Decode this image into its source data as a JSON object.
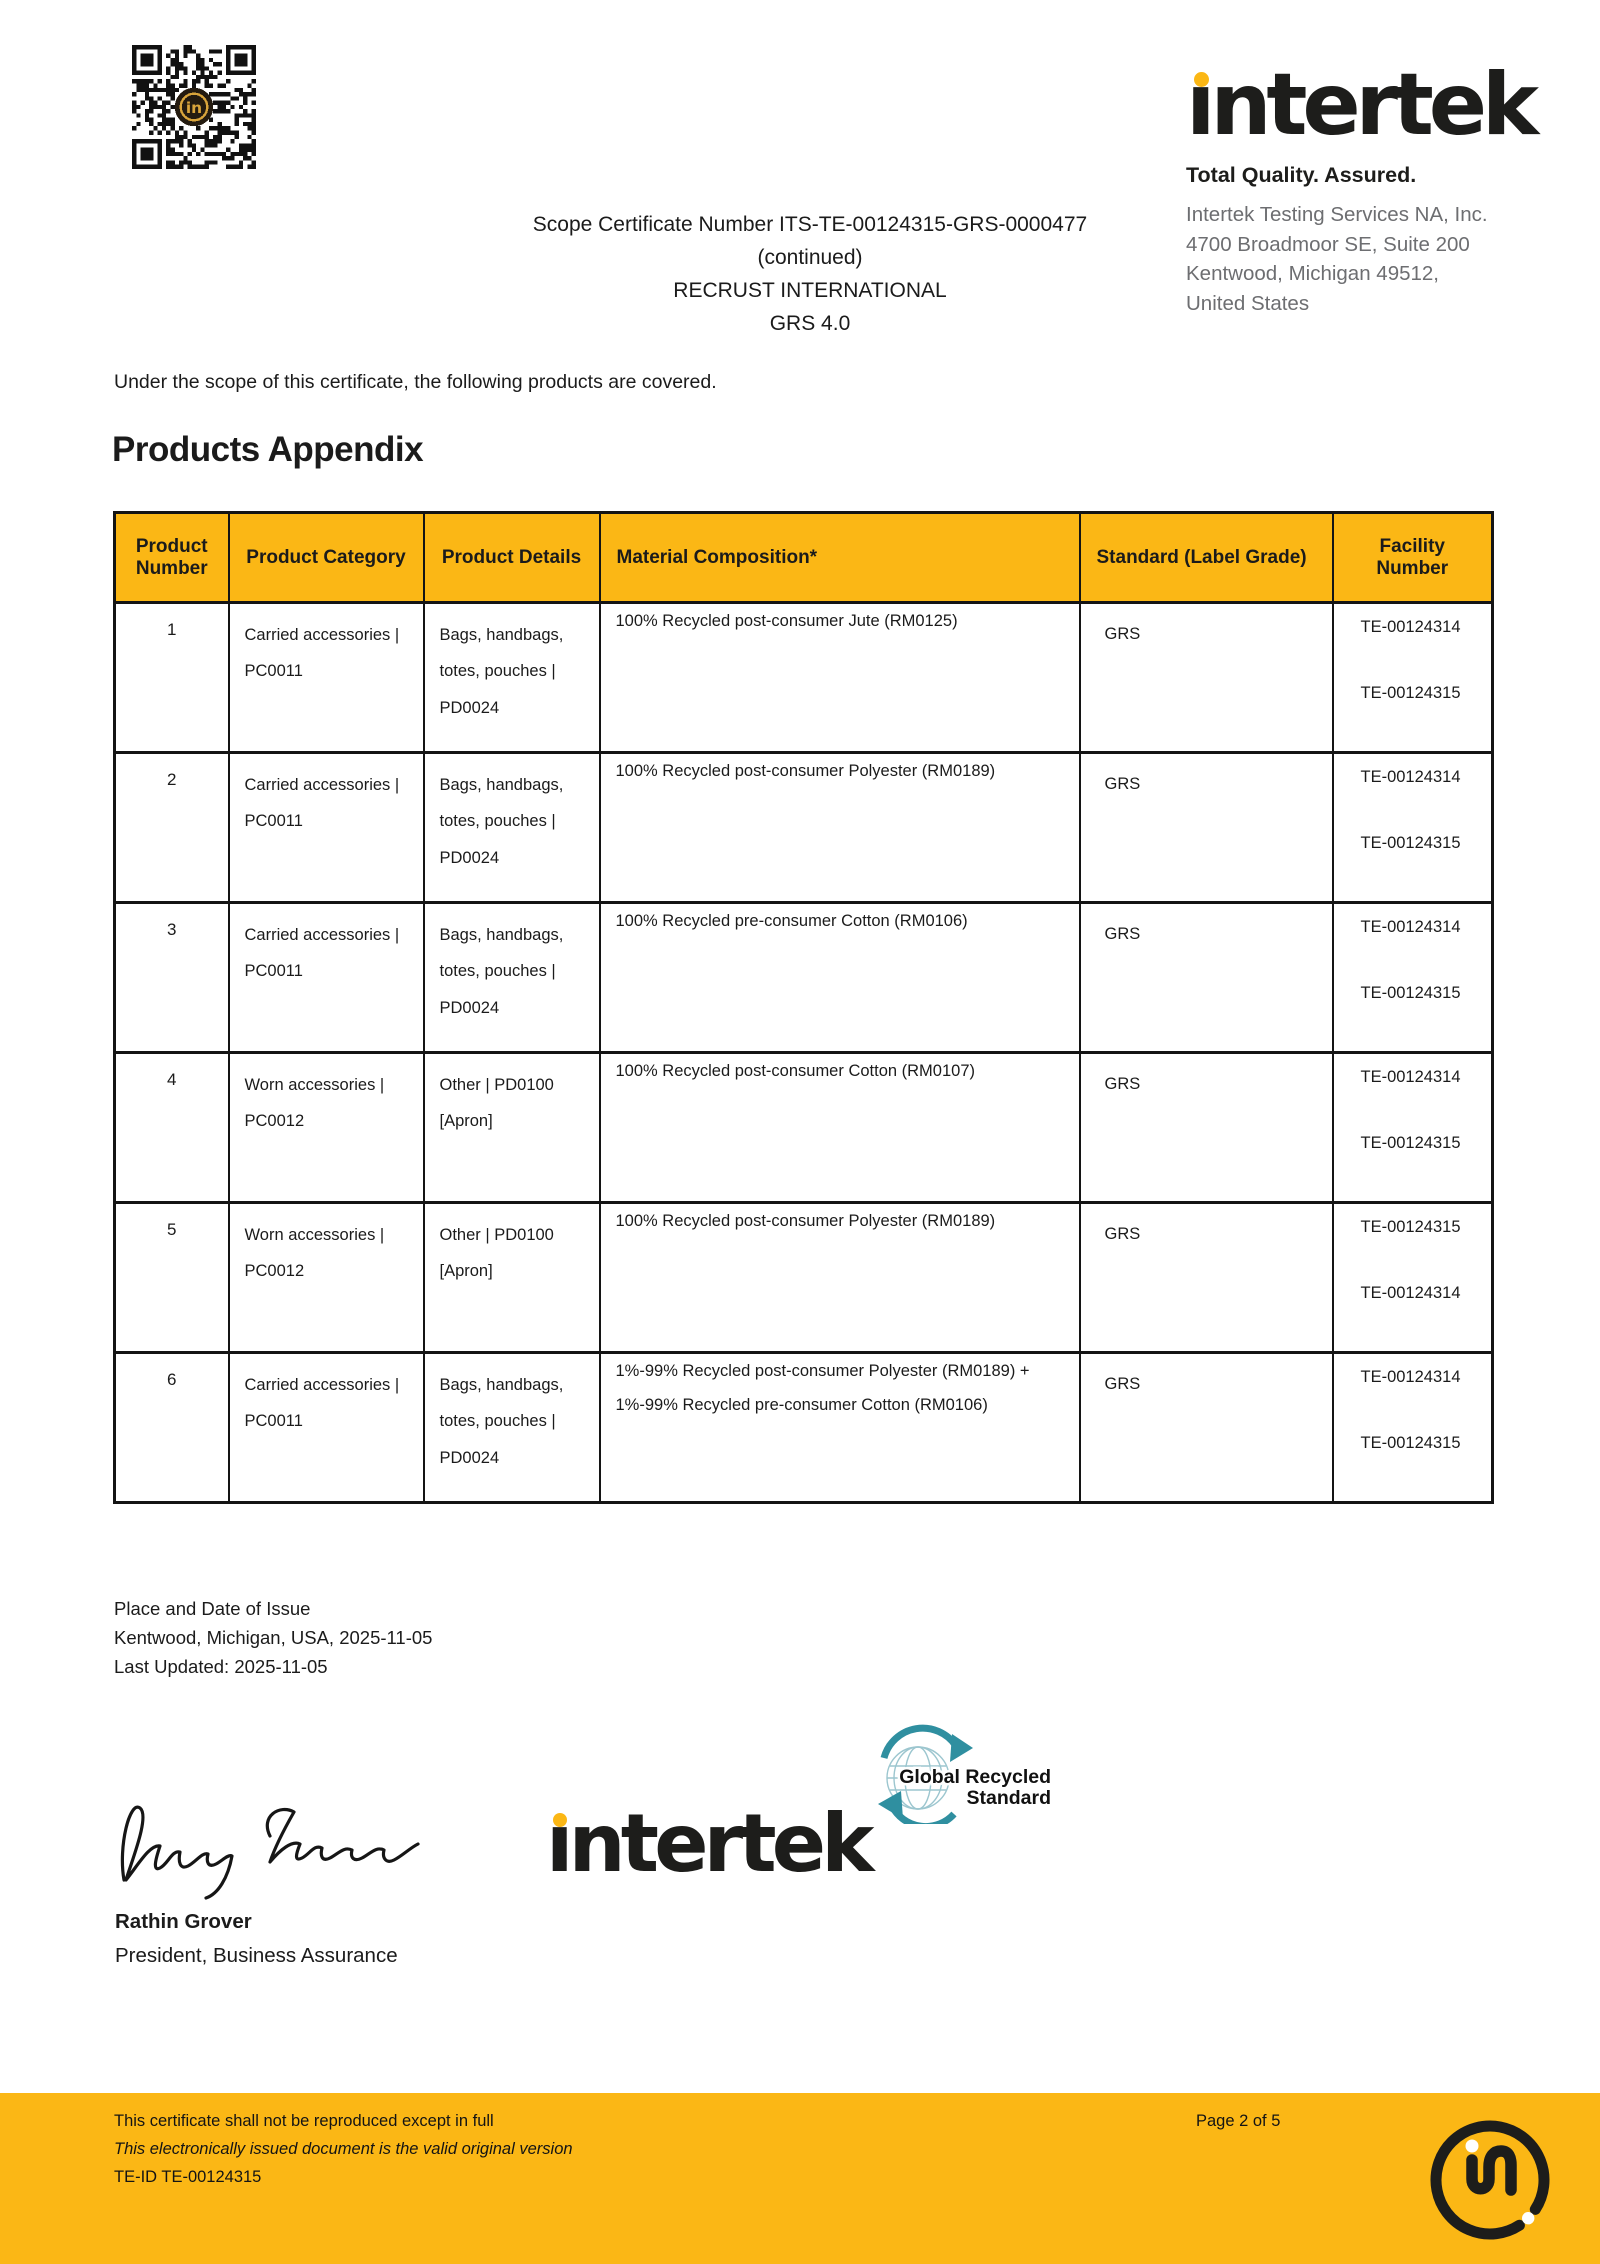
{
  "colors": {
    "accent_yellow": "#FBB715",
    "grs_teal": "#2F8FA0",
    "address_gray": "#6D6E71"
  },
  "header": {
    "scope_line": "Scope Certificate Number ITS-TE-00124315-GRS-0000477",
    "continued": "(continued)",
    "company": "RECRUST INTERNATIONAL",
    "standard": "GRS 4.0"
  },
  "brand": {
    "wordmark": "intertek",
    "tagline": "Total Quality. Assured.",
    "address_lines": [
      "Intertek Testing Services NA, Inc.",
      "4700 Broadmoor SE, Suite 200",
      "Kentwood, Michigan 49512,",
      "United States"
    ]
  },
  "intro": "Under the scope of this certificate, the following products are covered.",
  "section_title": "Products Appendix",
  "table": {
    "headers": [
      "Product Number",
      "Product Category",
      "Product Details",
      "Material Composition*",
      "Standard (Label Grade)",
      "Facility Number"
    ],
    "rows": [
      {
        "number": "1",
        "category": "Carried accessories | PC0011",
        "details": "Bags, handbags, totes, pouches | PD0024",
        "material": "100% Recycled post-consumer Jute (RM0125)",
        "standard": "GRS",
        "facility_1": "TE-00124314",
        "facility_2": "TE-00124315"
      },
      {
        "number": "2",
        "category": "Carried accessories | PC0011",
        "details": "Bags, handbags, totes, pouches | PD0024",
        "material": "100% Recycled post-consumer Polyester (RM0189)",
        "standard": "GRS",
        "facility_1": "TE-00124314",
        "facility_2": "TE-00124315"
      },
      {
        "number": "3",
        "category": "Carried accessories | PC0011",
        "details": "Bags, handbags, totes, pouches | PD0024",
        "material": "100% Recycled pre-consumer Cotton (RM0106)",
        "standard": "GRS",
        "facility_1": "TE-00124314",
        "facility_2": "TE-00124315"
      },
      {
        "number": "4",
        "category": "Worn accessories | PC0012",
        "details": "Other | PD0100 [Apron]",
        "material": "100% Recycled post-consumer Cotton (RM0107)",
        "standard": "GRS",
        "facility_1": "TE-00124314",
        "facility_2": "TE-00124315"
      },
      {
        "number": "5",
        "category": "Worn accessories | PC0012",
        "details": "Other | PD0100 [Apron]",
        "material": "100% Recycled post-consumer Polyester (RM0189)",
        "standard": "GRS",
        "facility_1": "TE-00124315",
        "facility_2": "TE-00124314"
      },
      {
        "number": "6",
        "category": "Carried accessories | PC0011",
        "details": "Bags, handbags, totes, pouches | PD0024",
        "material": "1%-99% Recycled post-consumer Polyester (RM0189) + 1%-99% Recycled pre-consumer Cotton (RM0106)",
        "standard": "GRS",
        "facility_1": "TE-00124314",
        "facility_2": "TE-00124315"
      }
    ]
  },
  "issue": {
    "label": "Place and Date of Issue",
    "place_date": "Kentwood, Michigan, USA, 2025-11-05",
    "last_updated": "Last Updated: 2025-11-05"
  },
  "signature": {
    "name": "Rathin Grover",
    "title": "President, Business Assurance"
  },
  "grs_logo": {
    "line1": "Global Recycled",
    "line2": "Standard"
  },
  "footer": {
    "line1": "This certificate shall not be reproduced except in full",
    "line2": "This electronically issued document is the valid original version",
    "line3": "TE-ID TE-00124315",
    "page": "Page 2 of 5"
  }
}
